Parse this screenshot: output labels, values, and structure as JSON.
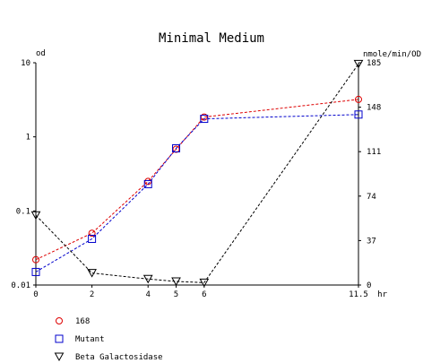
{
  "chart_data": {
    "type": "line",
    "title": "Minimal Medium",
    "left_axis": {
      "label": "od",
      "scale": "log",
      "range": [
        0.01,
        10
      ],
      "ticks": [
        {
          "value": 0.01,
          "label": "0.01"
        },
        {
          "value": 0.1,
          "label": "0.1"
        },
        {
          "value": 1,
          "label": "1"
        },
        {
          "value": 10,
          "label": "10"
        }
      ]
    },
    "right_axis": {
      "label": "nmole/min/OD",
      "scale": "linear",
      "range": [
        0,
        185
      ],
      "ticks": [
        {
          "value": 0,
          "label": "0"
        },
        {
          "value": 37,
          "label": "37"
        },
        {
          "value": 74,
          "label": "74"
        },
        {
          "value": 111,
          "label": "111"
        },
        {
          "value": 148,
          "label": "148"
        },
        {
          "value": 185,
          "label": "185"
        }
      ]
    },
    "x_axis": {
      "label": "hr",
      "range": [
        0,
        11.5
      ],
      "ticks": [
        {
          "value": 0,
          "label": "0"
        },
        {
          "value": 2,
          "label": "2"
        },
        {
          "value": 4,
          "label": "4"
        },
        {
          "value": 5,
          "label": "5"
        },
        {
          "value": 6,
          "label": "6"
        },
        {
          "value": 11.5,
          "label": "11.5"
        }
      ]
    },
    "series": [
      {
        "name": "168",
        "axis": "left",
        "color": "#dd0000",
        "marker": "circle",
        "x": [
          0,
          2,
          4,
          5,
          6,
          11.5
        ],
        "y": [
          0.022,
          0.05,
          0.25,
          0.68,
          1.85,
          3.2
        ]
      },
      {
        "name": "Mutant",
        "axis": "left",
        "color": "#0000cc",
        "marker": "square",
        "x": [
          0,
          2,
          4,
          5,
          6,
          11.5
        ],
        "y": [
          0.015,
          0.042,
          0.23,
          0.7,
          1.75,
          2.0
        ]
      },
      {
        "name": "Beta Galactosidase",
        "axis": "right",
        "color": "#000000",
        "marker": "triangle-down",
        "x": [
          0,
          2,
          4,
          5,
          6,
          11.5
        ],
        "y": [
          58,
          10,
          5,
          3,
          2,
          184
        ]
      }
    ],
    "legend": {
      "position": "bottom-left"
    },
    "grid": false
  }
}
